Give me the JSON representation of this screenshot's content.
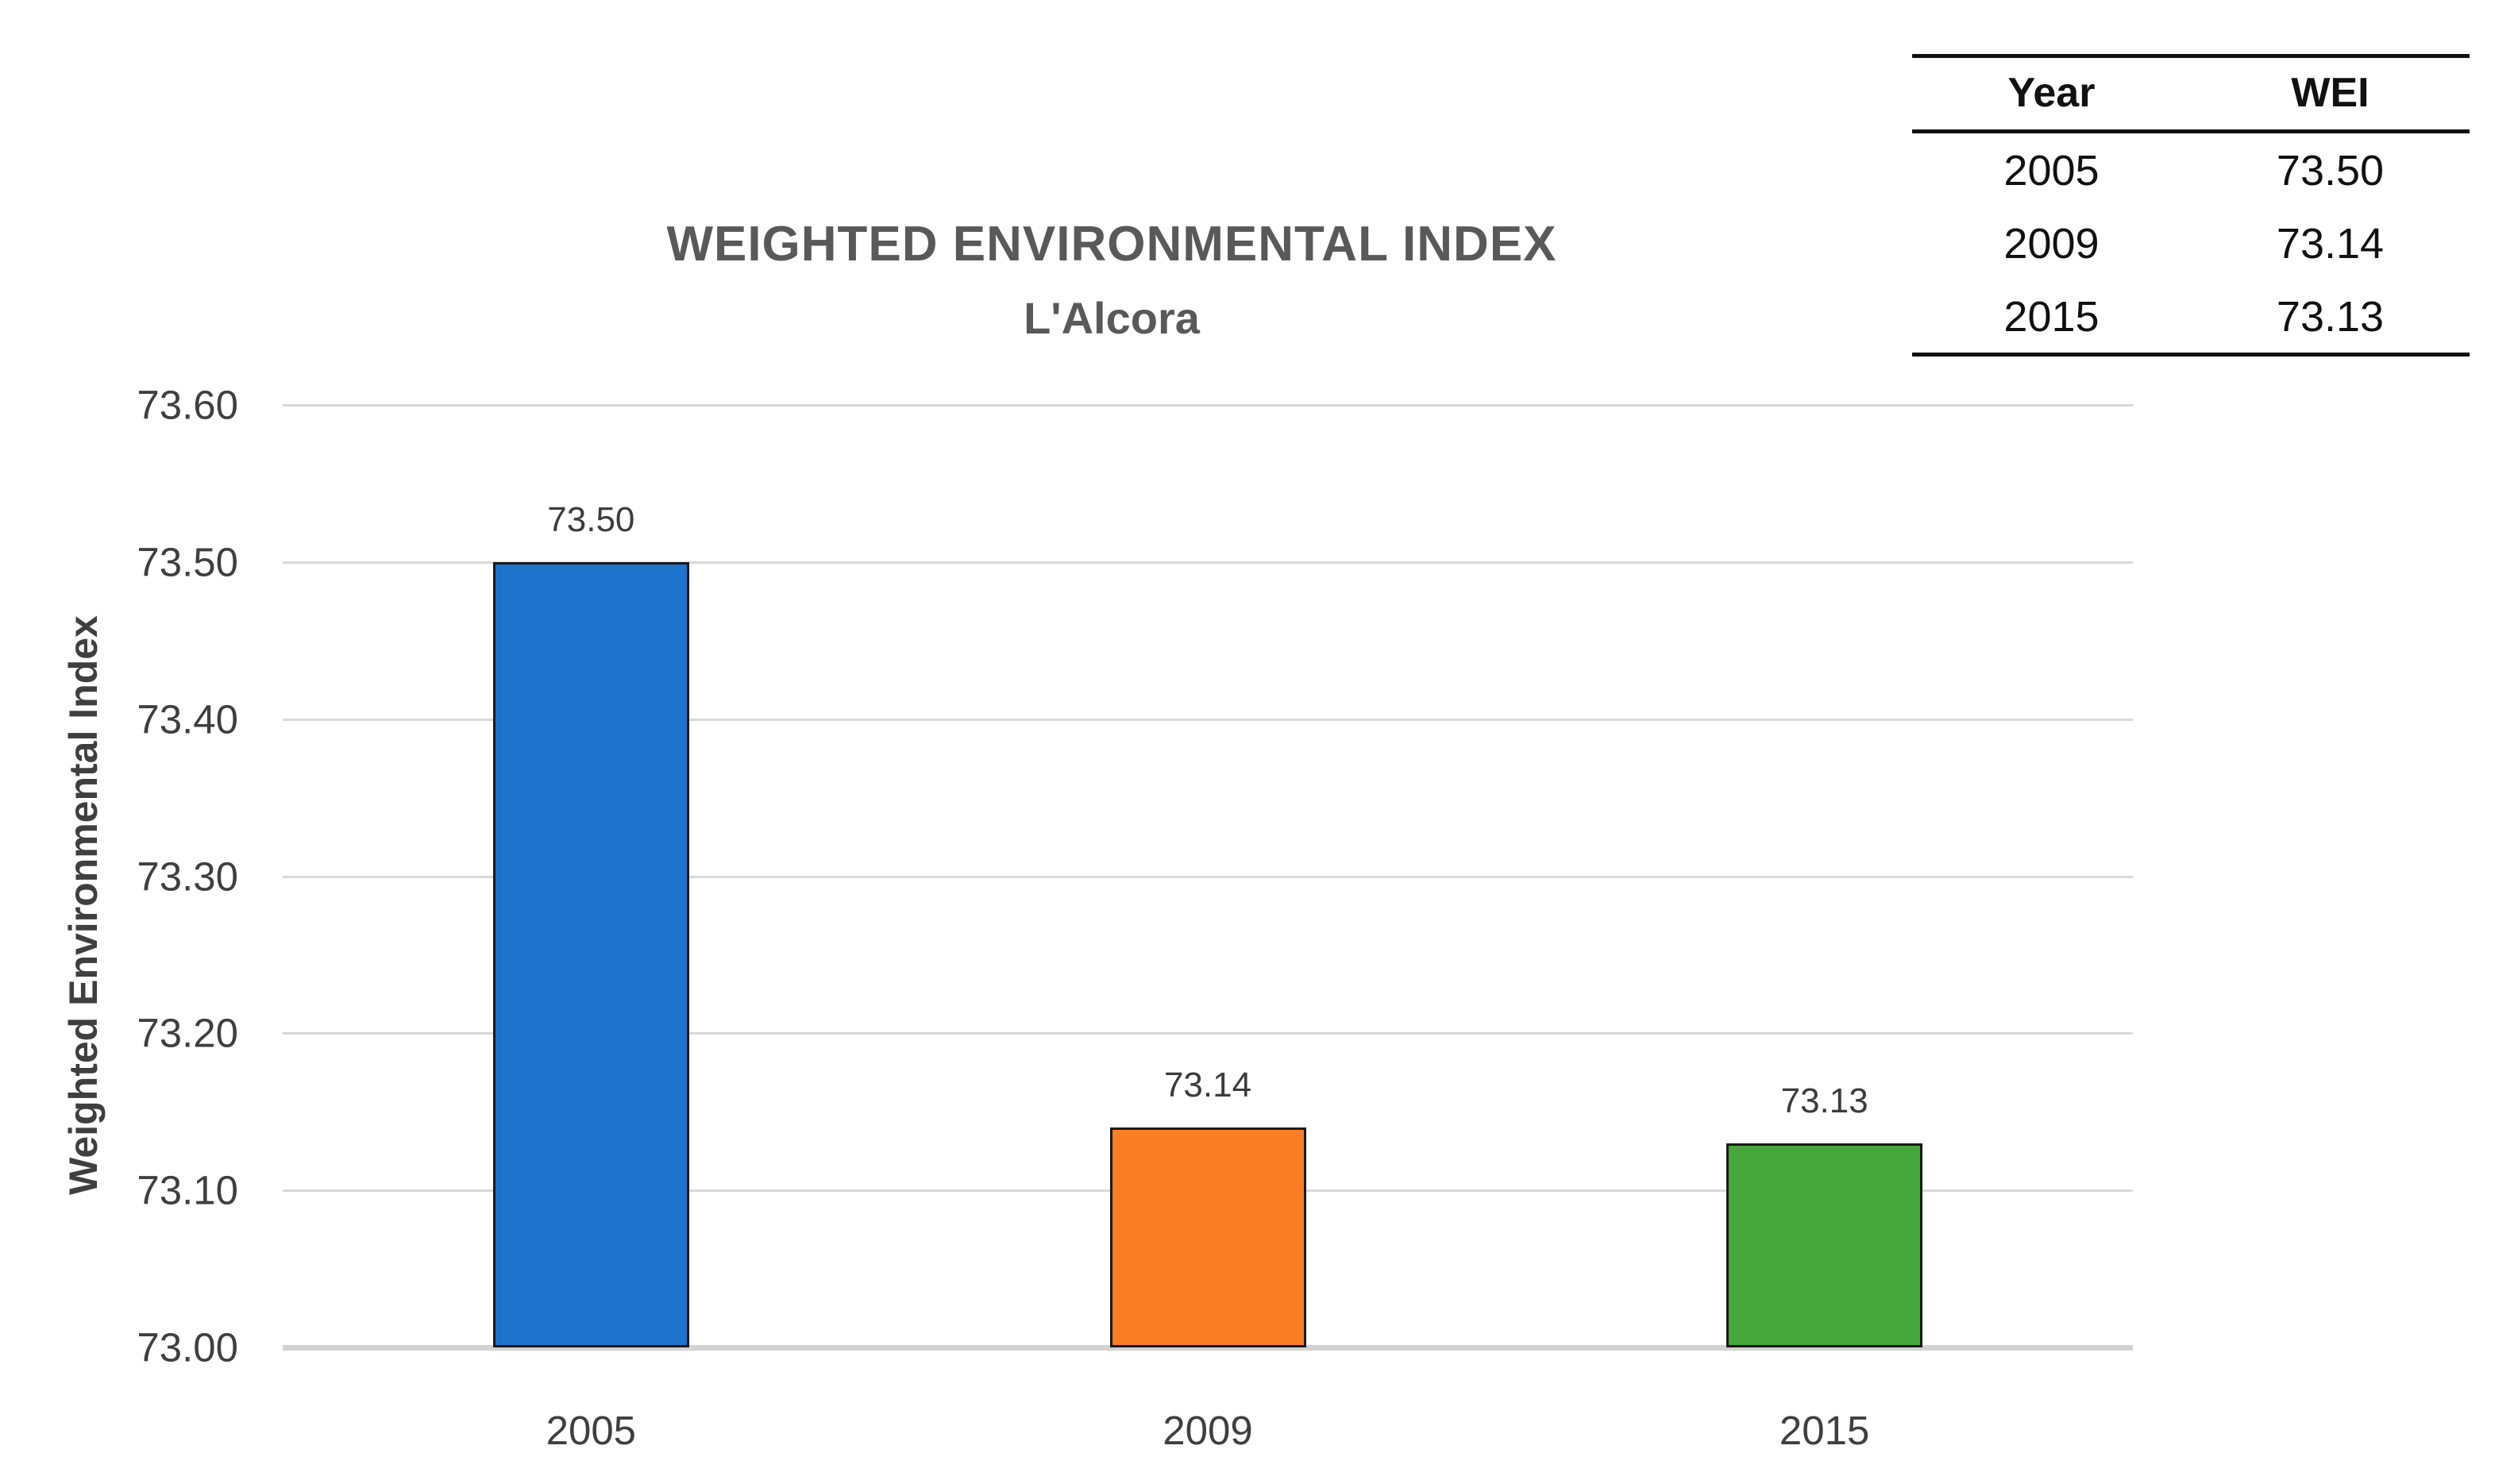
{
  "header": {
    "title": "WEIGHTED ENVIRONMENTAL INDEX",
    "subtitle": "L'Alcora"
  },
  "side_table": {
    "headers": [
      "Year",
      "WEI"
    ],
    "rows": [
      [
        "2005",
        "73.50"
      ],
      [
        "2009",
        "73.14"
      ],
      [
        "2015",
        "73.13"
      ]
    ]
  },
  "chart_data": {
    "type": "bar",
    "title": "WEIGHTED ENVIRONMENTAL INDEX",
    "subtitle": "L'Alcora",
    "categories": [
      "2005",
      "2009",
      "2015"
    ],
    "values": [
      73.5,
      73.14,
      73.13
    ],
    "bar_labels": [
      "73.50",
      "73.14",
      "73.13"
    ],
    "bar_colors": [
      "#1e73cd",
      "#fb7d24",
      "#46a73c"
    ],
    "bar_edge_color": "#1a1a1a",
    "xlabel": "",
    "ylabel": "Weighted Environmental Index",
    "ylim": [
      73.0,
      73.6
    ],
    "yticks": [
      "73.00",
      "73.10",
      "73.20",
      "73.30",
      "73.40",
      "73.50",
      "73.60"
    ],
    "grid": true,
    "gridline_color": "#d9d9d9",
    "baseline_color": "#d2d2d2",
    "legend": "none"
  },
  "colors": {
    "title_text": "#595959",
    "axis_text": "#3f3f3f",
    "table_text": "#111111"
  }
}
